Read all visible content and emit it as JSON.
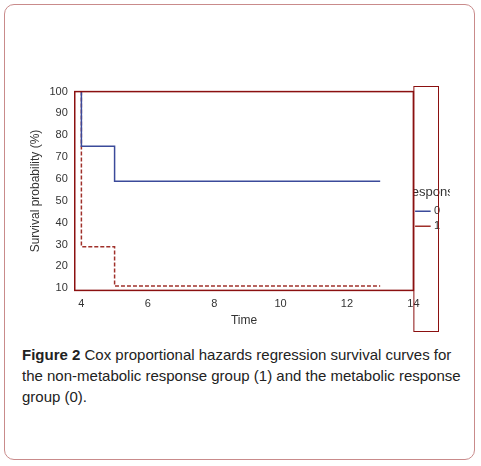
{
  "chart_data": {
    "type": "line",
    "stepped": true,
    "xlabel": "Time",
    "ylabel": "Survival probability (%)",
    "legend_title": "Response",
    "legend": "right",
    "caption_label": "Figure 2",
    "caption": "Cox proportional hazards regression survival curves for the non-metabolic response group (1) and the metabolic response group (0).",
    "xlim": [
      3.8,
      14
    ],
    "xticks": [
      4,
      6,
      8,
      10,
      12,
      14
    ],
    "ylim": [
      9,
      100
    ],
    "yticks": [
      10,
      20,
      30,
      40,
      50,
      60,
      70,
      80,
      90,
      100
    ],
    "grid": false,
    "series": [
      {
        "name": "0",
        "color": "#3b4a9a",
        "line_style": "solid",
        "marker": "none",
        "x": [
          4,
          4,
          5,
          6,
          13
        ],
        "values": [
          100,
          86,
          75,
          59,
          59
        ]
      },
      {
        "name": "1",
        "color": "#a0302a",
        "line_style": "dashed",
        "marker": "none",
        "x": [
          4,
          4,
          5,
          6,
          13
        ],
        "values": [
          100,
          55,
          29,
          11,
          11
        ]
      }
    ]
  }
}
